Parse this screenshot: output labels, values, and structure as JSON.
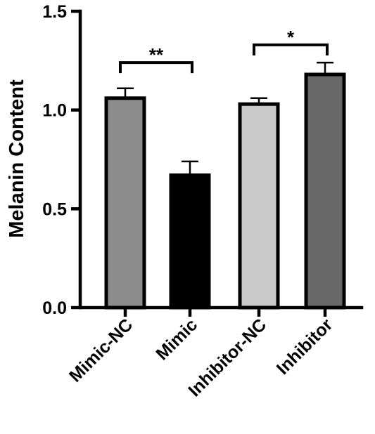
{
  "chart_data": {
    "type": "bar",
    "categories": [
      "Mimic-NC",
      "Mimic",
      "Inhibitor-NC",
      "Inhibitor"
    ],
    "values": [
      1.06,
      0.67,
      1.03,
      1.18
    ],
    "errors": [
      0.05,
      0.07,
      0.03,
      0.06
    ],
    "colors": [
      "#8c8c8c",
      "#000000",
      "#c9c9c9",
      "#686868"
    ],
    "ylabel": "Melanin Content",
    "ylim": [
      0,
      1.5
    ],
    "yticks": [
      0.0,
      0.5,
      1.0,
      1.5
    ],
    "ytick_labels": [
      "0.0",
      "0.5",
      "1.0",
      "1.5"
    ],
    "grid": false,
    "annotations": [
      {
        "from": 0,
        "to": 1,
        "label": "**",
        "y": 1.24
      },
      {
        "from": 2,
        "to": 3,
        "label": "*",
        "y": 1.33
      }
    ]
  }
}
